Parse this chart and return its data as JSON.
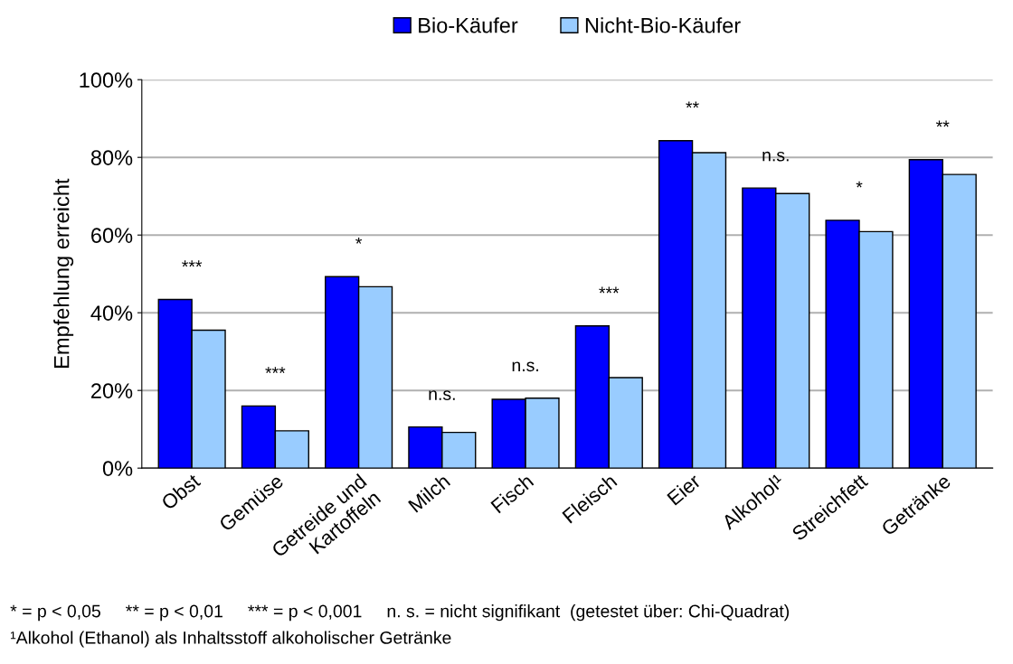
{
  "chart_data": {
    "type": "bar",
    "ylabel": "Empfehlung erreicht",
    "categories": [
      "Obst",
      "Gemüse",
      "Getreide und\nKartoffeln",
      "Milch",
      "Fisch",
      "Fleisch",
      "Eier",
      "Alkohol¹",
      "Streichfett",
      "Getränke"
    ],
    "series": [
      {
        "name": "Bio-Käufer",
        "color": "#0000ff",
        "values": [
          43.4,
          16,
          49.3,
          10.6,
          17.7,
          36.6,
          84.3,
          72.1,
          63.8,
          79.4
        ]
      },
      {
        "name": "Nicht-Bio-Käufer",
        "color": "#99ccff",
        "values": [
          35.5,
          9.6,
          46.7,
          9.2,
          18,
          23.3,
          81.2,
          70.7,
          60.9,
          75.6
        ]
      }
    ],
    "ylim": [
      0,
      100
    ],
    "yticks": [
      {
        "value": 0,
        "label": "0%"
      },
      {
        "value": 20,
        "label": "20%"
      },
      {
        "value": 40,
        "label": "40%"
      },
      {
        "value": 60,
        "label": "60%"
      },
      {
        "value": 80,
        "label": "80%"
      },
      {
        "value": 100,
        "label": "100%"
      }
    ],
    "grid": "y",
    "legend": "top",
    "annotations": [
      "***",
      "***",
      "*",
      "n.s.",
      "n.s.",
      "***",
      "**",
      "n.s.",
      "*",
      "**",
      "* = p < 0,05     ** = p < 0,01     *** = p < 0,001     n. s. = nicht signifikant  (getestet über: Chi-Quadrat)",
      "¹Alkohol (Ethanol) als Inhaltsstoff alkoholischer Getränke"
    ]
  }
}
